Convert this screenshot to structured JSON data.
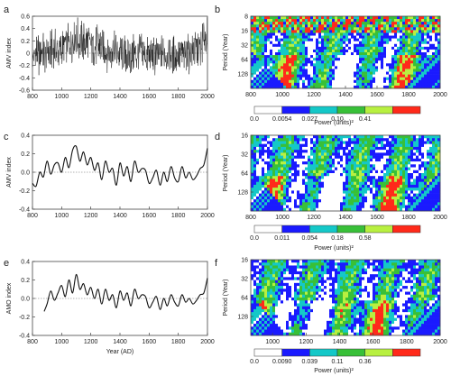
{
  "figure": {
    "panels": [
      {
        "letter": "a",
        "ylabel": "AMV index"
      },
      {
        "letter": "b",
        "ylabel": "Period (Year)",
        "colorbar_label": "Power (units)²"
      },
      {
        "letter": "c",
        "ylabel": "AMV index"
      },
      {
        "letter": "d",
        "ylabel": "Period (Year)",
        "colorbar_label": "Power (units)²"
      },
      {
        "letter": "e",
        "ylabel": "AMO index",
        "xlabel": "Year (AD)"
      },
      {
        "letter": "f",
        "ylabel": "Period (Year)",
        "colorbar_label": "Power (units)²"
      }
    ]
  },
  "chart_data": [
    {
      "id": "a",
      "type": "line",
      "title": "",
      "xlabel": "",
      "ylabel": "AMV index",
      "xlim": [
        800,
        2000
      ],
      "ylim": [
        -0.6,
        0.6
      ],
      "xticks": [
        "800",
        "1000",
        "1200",
        "1400",
        "1600",
        "1800",
        "2000"
      ],
      "yticks": [
        "0.6",
        "0.4",
        "0.2",
        "0",
        "-0.2",
        "-0.4",
        "-0.6"
      ],
      "series": [
        {
          "x": [
            800,
            850,
            900,
            950,
            1000,
            1050,
            1100,
            1150,
            1200,
            1250,
            1300,
            1350,
            1400,
            1450,
            1500,
            1550,
            1600,
            1650,
            1700,
            1750,
            1800,
            1850,
            1900,
            1950,
            2000
          ],
          "y": [
            -0.05,
            0.0,
            0.02,
            0.05,
            0.05,
            0.15,
            0.25,
            0.2,
            0.15,
            0.1,
            0.05,
            0.05,
            0.0,
            -0.02,
            0.0,
            0.0,
            -0.05,
            -0.05,
            0.0,
            -0.05,
            -0.05,
            0.0,
            0.05,
            0.1,
            0.35
          ]
        }
      ],
      "noise": true
    },
    {
      "id": "c",
      "type": "line",
      "title": "",
      "xlabel": "",
      "ylabel": "AMV index",
      "xlim": [
        800,
        2000
      ],
      "ylim": [
        -0.4,
        0.4
      ],
      "xticks": [
        "800",
        "1000",
        "1200",
        "1400",
        "1600",
        "1800",
        "2000"
      ],
      "yticks": [
        "0.4",
        "0.2",
        "0.0",
        "-0.2",
        "-0.4"
      ],
      "series": [
        {
          "x": [
            800,
            825,
            850,
            875,
            900,
            925,
            950,
            975,
            1000,
            1025,
            1050,
            1075,
            1100,
            1125,
            1150,
            1175,
            1200,
            1225,
            1250,
            1275,
            1300,
            1325,
            1350,
            1375,
            1400,
            1425,
            1450,
            1475,
            1500,
            1525,
            1550,
            1575,
            1600,
            1625,
            1650,
            1675,
            1700,
            1725,
            1750,
            1775,
            1800,
            1825,
            1850,
            1875,
            1900,
            1925,
            1950,
            1975,
            2000
          ],
          "y": [
            -0.12,
            -0.15,
            0.0,
            -0.05,
            0.12,
            -0.02,
            0.08,
            0.1,
            0.0,
            0.16,
            0.05,
            0.24,
            0.28,
            0.12,
            0.22,
            0.08,
            0.16,
            0.02,
            0.1,
            -0.08,
            0.12,
            0.0,
            0.04,
            -0.14,
            0.1,
            -0.04,
            0.06,
            -0.1,
            0.12,
            0.0,
            0.04,
            0.02,
            -0.12,
            -0.06,
            0.02,
            -0.14,
            0.0,
            -0.1,
            0.06,
            -0.06,
            -0.1,
            0.06,
            -0.06,
            0.0,
            -0.08,
            -0.04,
            0.04,
            0.08,
            0.26
          ]
        }
      ]
    },
    {
      "id": "e",
      "type": "line",
      "title": "",
      "xlabel": "Year (AD)",
      "ylabel": "AMO index",
      "xlim": [
        800,
        2000
      ],
      "ylim": [
        -0.4,
        0.4
      ],
      "xticks": [
        "800",
        "1000",
        "1200",
        "1400",
        "1600",
        "1800",
        "2000"
      ],
      "yticks": [
        "0.4",
        "0.2",
        "0.0",
        "-0.2",
        "-0.4"
      ],
      "series": [
        {
          "x": [
            880,
            900,
            925,
            950,
            975,
            1000,
            1025,
            1050,
            1075,
            1100,
            1125,
            1150,
            1175,
            1200,
            1225,
            1250,
            1275,
            1300,
            1325,
            1350,
            1375,
            1400,
            1425,
            1450,
            1475,
            1500,
            1525,
            1550,
            1575,
            1600,
            1625,
            1650,
            1675,
            1700,
            1725,
            1750,
            1775,
            1800,
            1825,
            1850,
            1875,
            1900,
            1925,
            1950,
            1975,
            2000
          ],
          "y": [
            -0.14,
            -0.06,
            0.08,
            -0.02,
            0.06,
            0.14,
            0.02,
            0.2,
            0.06,
            0.26,
            0.1,
            0.16,
            0.04,
            0.12,
            0.0,
            0.1,
            -0.06,
            0.1,
            -0.02,
            0.04,
            -0.1,
            0.08,
            -0.02,
            0.06,
            -0.08,
            0.1,
            0.0,
            0.04,
            0.02,
            -0.1,
            -0.04,
            0.02,
            -0.12,
            0.0,
            -0.08,
            0.04,
            -0.04,
            -0.08,
            0.04,
            -0.04,
            0.0,
            -0.06,
            -0.02,
            0.04,
            0.06,
            0.22
          ]
        }
      ]
    },
    {
      "id": "b",
      "type": "heatmap",
      "title": "",
      "xlabel": "",
      "ylabel": "Period (Year)",
      "xlim": [
        800,
        2000
      ],
      "ylim": [
        8,
        256
      ],
      "log_y": true,
      "xticks": [
        "800",
        "1000",
        "1200",
        "1400",
        "1600",
        "1800",
        "2000"
      ],
      "yticks": [
        "8",
        "16",
        "32",
        "64",
        "128"
      ],
      "colorbar": {
        "label": "Power (units)²",
        "ticks": [
          "0.0",
          "0.0054",
          "0.027",
          "0.10",
          "0.41"
        ],
        "colors": [
          "#ffffff",
          "#1a1aff",
          "#14c8c8",
          "#38c038",
          "#b8f040",
          "#ff2a1a"
        ]
      }
    },
    {
      "id": "d",
      "type": "heatmap",
      "title": "",
      "xlabel": "",
      "ylabel": "Period (Year)",
      "xlim": [
        800,
        2000
      ],
      "ylim": [
        16,
        256
      ],
      "log_y": true,
      "xticks": [
        "800",
        "1000",
        "1200",
        "1400",
        "1600",
        "1800",
        "2000"
      ],
      "yticks": [
        "16",
        "32",
        "64",
        "128"
      ],
      "colorbar": {
        "label": "Power (units)²",
        "ticks": [
          "0.0",
          "0.011",
          "0.054",
          "0.18",
          "0.58"
        ],
        "colors": [
          "#ffffff",
          "#1a1aff",
          "#14c8c8",
          "#38c038",
          "#b8f040",
          "#ff2a1a"
        ]
      }
    },
    {
      "id": "f",
      "type": "heatmap",
      "title": "",
      "xlabel": "",
      "ylabel": "Period (Year)",
      "xlim": [
        870,
        2000
      ],
      "ylim": [
        16,
        256
      ],
      "log_y": true,
      "xticks": [
        "1000",
        "1200",
        "1400",
        "1600",
        "1800",
        "2000"
      ],
      "yticks": [
        "16",
        "32",
        "64",
        "128"
      ],
      "colorbar": {
        "label": "Power (units)²",
        "ticks": [
          "0.0",
          "0.0090",
          "0.039",
          "0.11",
          "0.36"
        ],
        "colors": [
          "#ffffff",
          "#1a1aff",
          "#14c8c8",
          "#38c038",
          "#b8f040",
          "#ff2a1a"
        ]
      }
    }
  ]
}
